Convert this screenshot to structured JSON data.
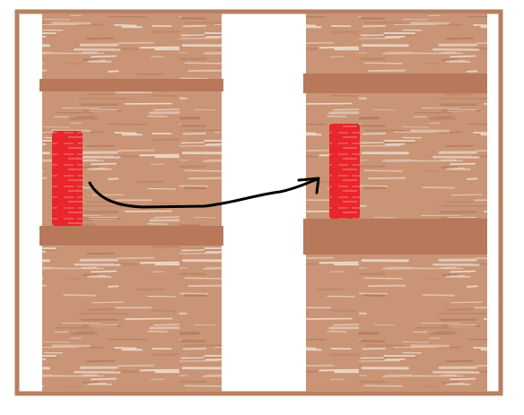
{
  "colors": {
    "frame": "#b97f60",
    "wood_base": "#c99576",
    "wood_light": "#f2e2d6",
    "wood_dark": "#b27a5c",
    "band": "#b8785a",
    "block": "#e8262c",
    "block_light": "#f26b6e",
    "arrow": "#000000",
    "background": "#ffffff"
  },
  "panels": [
    {
      "name": "left-panel"
    },
    {
      "name": "right-panel"
    }
  ],
  "arrow": {
    "direction": "left-to-right",
    "icon": "curved-arrow-icon"
  }
}
